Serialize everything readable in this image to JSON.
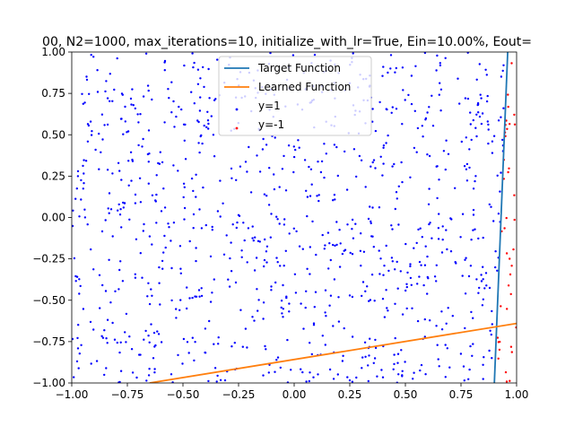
{
  "chart_data": {
    "type": "scatter",
    "title": "00, N2=1000, max_iterations=10, initialize_with_lr=True, Ein=10.00%, Eout=",
    "xlabel": "",
    "ylabel": "",
    "xlim": [
      -1.0,
      1.0
    ],
    "ylim": [
      -1.0,
      1.0
    ],
    "x_ticks": [
      -1.0,
      -0.75,
      -0.5,
      -0.25,
      0.0,
      0.25,
      0.5,
      0.75,
      1.0
    ],
    "x_tick_labels": [
      "−1.00",
      "−0.75",
      "−0.50",
      "−0.25",
      "0.00",
      "0.25",
      "0.50",
      "0.75",
      "1.00"
    ],
    "y_ticks": [
      -1.0,
      -0.75,
      -0.5,
      -0.25,
      0.0,
      0.25,
      0.5,
      0.75,
      1.0
    ],
    "y_tick_labels": [
      "−1.00",
      "−0.75",
      "−0.50",
      "−0.25",
      "0.00",
      "0.25",
      "0.50",
      "0.75",
      "1.00"
    ],
    "grid": false,
    "legend_position": "top-center",
    "lines": [
      {
        "name": "Target Function",
        "color": "#1f77b4",
        "points": [
          [
            0.9,
            -1.0
          ],
          [
            0.96,
            1.0
          ]
        ]
      },
      {
        "name": "Learned Function",
        "color": "#ff7f0e",
        "points": [
          [
            -0.65,
            -1.0
          ],
          [
            1.0,
            -0.64
          ]
        ]
      }
    ],
    "scatter_series": [
      {
        "name": "y=1",
        "color": "#0000ff",
        "marker_size": "small",
        "approx_count": 1000,
        "region": "points left of the target line"
      },
      {
        "name": "y=-1",
        "color": "#ff0000",
        "marker_size": "small",
        "approx_count": 40,
        "region": "points right of the target line"
      }
    ]
  }
}
